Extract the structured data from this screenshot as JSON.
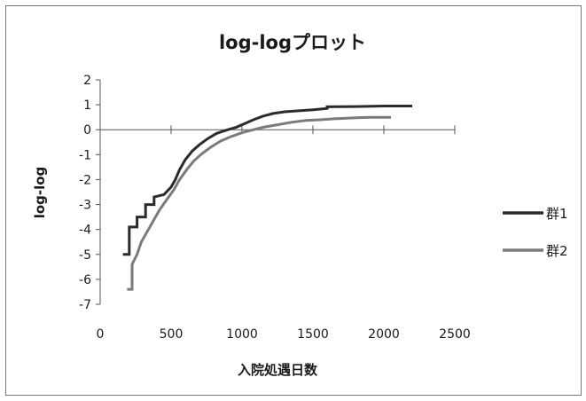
{
  "chart_data": {
    "type": "line",
    "title": "log-logプロット",
    "xlabel": "入院処遇日数",
    "ylabel": "log-log",
    "xlim": [
      0,
      2500
    ],
    "ylim": [
      -7,
      2
    ],
    "x_ticks": [
      0,
      500,
      1000,
      1500,
      2000,
      2500
    ],
    "y_ticks": [
      2,
      1,
      0,
      -1,
      -2,
      -3,
      -4,
      -5,
      -6,
      -7
    ],
    "grid": false,
    "legend_position": "right",
    "series": [
      {
        "name": "群1",
        "color": "#2b2b2b",
        "points": [
          [
            160,
            -5.0
          ],
          [
            205,
            -5.0
          ],
          [
            205,
            -3.9
          ],
          [
            260,
            -3.9
          ],
          [
            260,
            -3.5
          ],
          [
            320,
            -3.5
          ],
          [
            320,
            -3.0
          ],
          [
            380,
            -3.0
          ],
          [
            380,
            -2.7
          ],
          [
            450,
            -2.6
          ],
          [
            500,
            -2.3
          ],
          [
            530,
            -2.0
          ],
          [
            560,
            -1.6
          ],
          [
            600,
            -1.2
          ],
          [
            650,
            -0.85
          ],
          [
            700,
            -0.6
          ],
          [
            760,
            -0.35
          ],
          [
            820,
            -0.15
          ],
          [
            900,
            0.0
          ],
          [
            960,
            0.1
          ],
          [
            1020,
            0.25
          ],
          [
            1080,
            0.4
          ],
          [
            1150,
            0.55
          ],
          [
            1220,
            0.65
          ],
          [
            1300,
            0.72
          ],
          [
            1400,
            0.76
          ],
          [
            1500,
            0.8
          ],
          [
            1600,
            0.85
          ],
          [
            1600,
            0.92
          ],
          [
            1800,
            0.93
          ],
          [
            2000,
            0.95
          ],
          [
            2200,
            0.95
          ]
        ]
      },
      {
        "name": "群2",
        "color": "#7a7a7a",
        "points": [
          [
            190,
            -6.4
          ],
          [
            225,
            -6.4
          ],
          [
            225,
            -5.4
          ],
          [
            260,
            -5.0
          ],
          [
            290,
            -4.5
          ],
          [
            330,
            -4.1
          ],
          [
            380,
            -3.6
          ],
          [
            420,
            -3.2
          ],
          [
            470,
            -2.8
          ],
          [
            520,
            -2.4
          ],
          [
            560,
            -2.0
          ],
          [
            610,
            -1.6
          ],
          [
            660,
            -1.25
          ],
          [
            720,
            -0.95
          ],
          [
            780,
            -0.7
          ],
          [
            850,
            -0.45
          ],
          [
            920,
            -0.28
          ],
          [
            1000,
            -0.12
          ],
          [
            1080,
            0.0
          ],
          [
            1150,
            0.1
          ],
          [
            1250,
            0.2
          ],
          [
            1350,
            0.3
          ],
          [
            1450,
            0.37
          ],
          [
            1550,
            0.4
          ],
          [
            1650,
            0.44
          ],
          [
            1800,
            0.48
          ],
          [
            1900,
            0.5
          ],
          [
            2050,
            0.5
          ]
        ]
      }
    ]
  }
}
